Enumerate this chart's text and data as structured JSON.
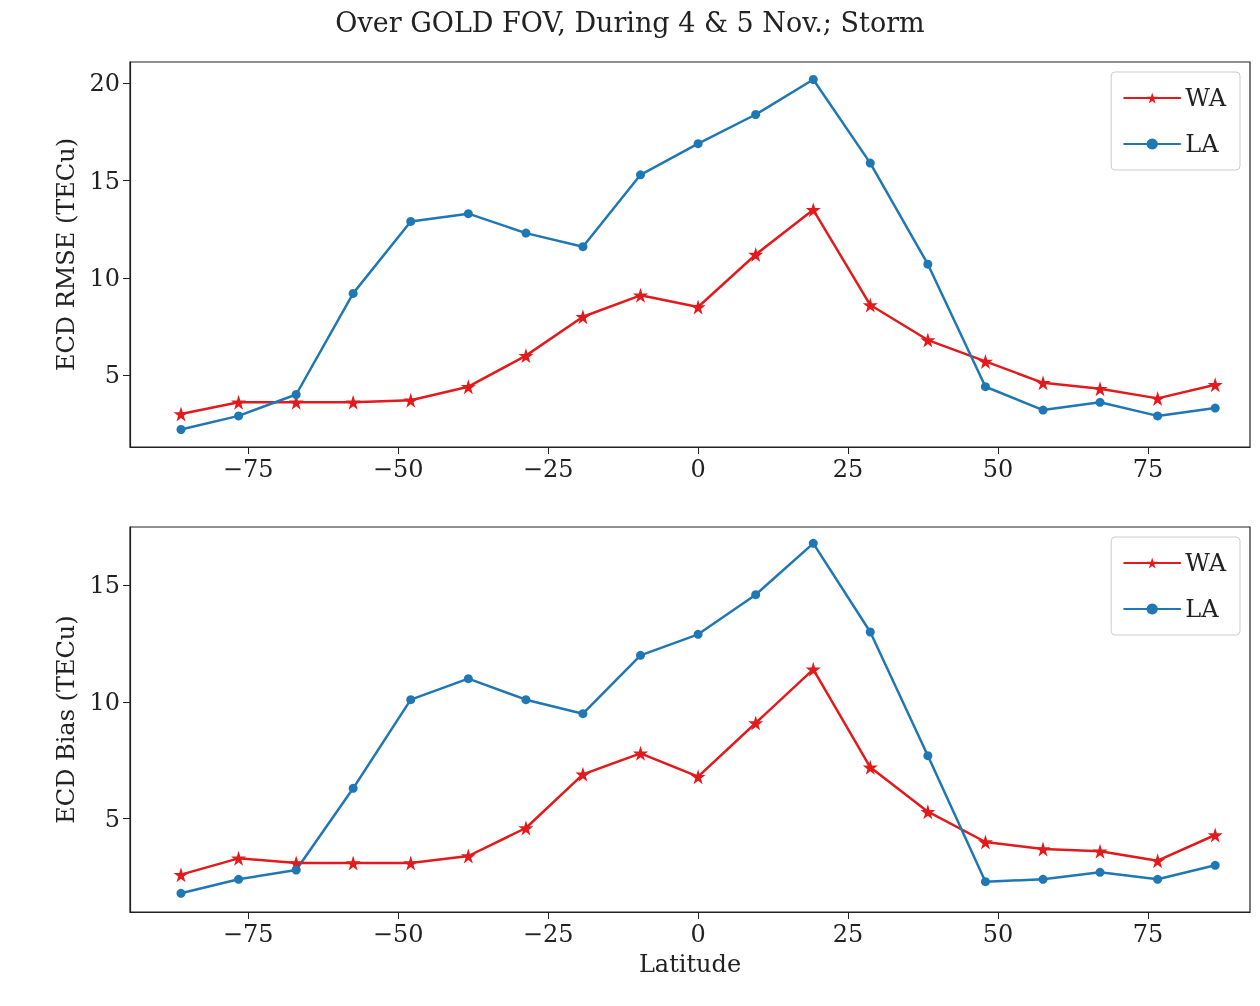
{
  "chart_data": [
    {
      "type": "line",
      "title": "Over GOLD FOV, During 4 & 5 Nov.; Storm",
      "ylabel": "ECD RMSE (TECu)",
      "x": [
        -86.2,
        -76.6,
        -67,
        -57.5,
        -47.9,
        -38.3,
        -28.7,
        -19.2,
        -9.6,
        0,
        9.6,
        19.2,
        28.7,
        38.3,
        47.9,
        57.5,
        67,
        76.6,
        86.2
      ],
      "series": [
        {
          "name": "WA",
          "color": "#e31a1c",
          "marker": "star",
          "values": [
            3.0,
            3.6,
            3.6,
            3.6,
            3.7,
            4.4,
            6.0,
            8.0,
            9.1,
            8.5,
            11.2,
            13.5,
            8.6,
            6.8,
            5.7,
            4.6,
            4.3,
            3.8,
            4.5
          ]
        },
        {
          "name": "LA",
          "color": "#1f77b4",
          "marker": "circle",
          "values": [
            2.2,
            2.9,
            4.0,
            9.2,
            12.9,
            13.3,
            12.3,
            11.6,
            15.3,
            16.9,
            18.4,
            20.2,
            15.9,
            10.7,
            4.4,
            3.2,
            3.6,
            2.9,
            3.3
          ]
        }
      ],
      "xlim": [
        -94.7,
        92
      ],
      "xticks": [
        {
          "value": -75,
          "label": "−75"
        },
        {
          "value": -50,
          "label": "−50"
        },
        {
          "value": -25,
          "label": "−25"
        },
        0,
        25,
        50,
        75
      ],
      "ylim": [
        1.3,
        21.1
      ],
      "yticks": [
        5,
        10,
        15,
        20
      ],
      "legend": "top right",
      "line_style": "solid",
      "grid": false
    },
    {
      "type": "line",
      "xlabel": "Latitude",
      "ylabel": "ECD Bias (TECu)",
      "x": [
        -86.2,
        -76.6,
        -67,
        -57.5,
        -47.9,
        -38.3,
        -28.7,
        -19.2,
        -9.6,
        0,
        9.6,
        19.2,
        28.7,
        38.3,
        47.9,
        57.5,
        67,
        76.6,
        86.2
      ],
      "series": [
        {
          "name": "WA",
          "color": "#e31a1c",
          "marker": "star",
          "values": [
            2.6,
            3.3,
            3.1,
            3.1,
            3.1,
            3.4,
            4.6,
            6.9,
            7.8,
            6.8,
            9.1,
            11.4,
            7.2,
            5.3,
            4.0,
            3.7,
            3.6,
            3.2,
            4.3
          ]
        },
        {
          "name": "LA",
          "color": "#1f77b4",
          "marker": "circle",
          "values": [
            1.8,
            2.4,
            2.8,
            6.3,
            10.1,
            11.0,
            10.1,
            9.5,
            12.0,
            12.9,
            14.6,
            16.8,
            13.0,
            7.7,
            2.3,
            2.4,
            2.7,
            2.4,
            3.0
          ]
        }
      ],
      "xlim": [
        -94.7,
        92
      ],
      "xticks": [
        {
          "value": -75,
          "label": "−75"
        },
        {
          "value": -50,
          "label": "−50"
        },
        {
          "value": -25,
          "label": "−25"
        },
        0,
        25,
        50,
        75
      ],
      "ylim": [
        1.0,
        17.5
      ],
      "yticks": [
        5,
        10,
        15
      ],
      "legend": "top right",
      "line_style": "solid",
      "grid": false
    }
  ]
}
